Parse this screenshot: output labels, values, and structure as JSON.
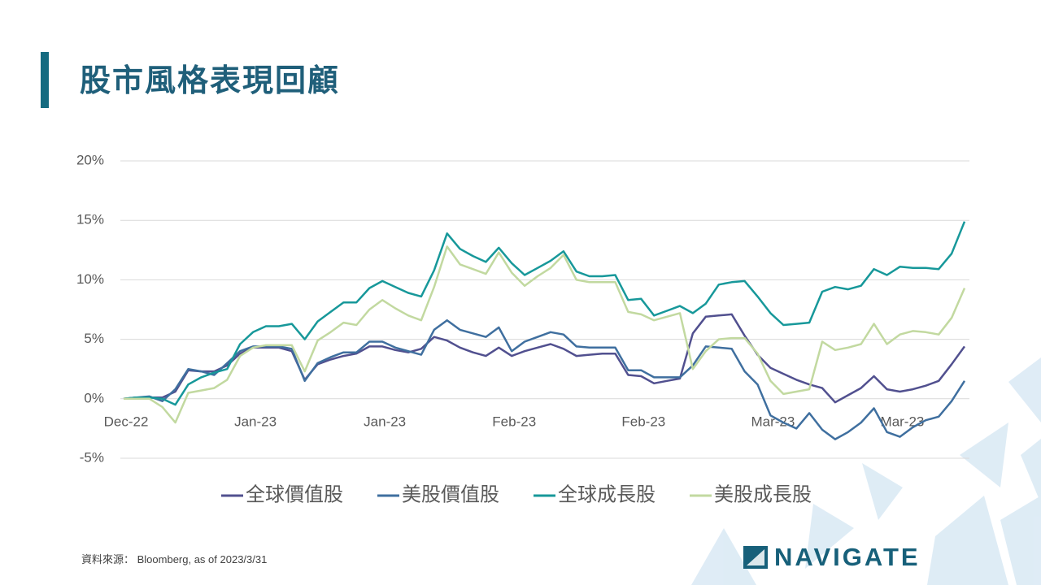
{
  "header": {
    "title": "股市風格表現回顧"
  },
  "footer": {
    "source": "資料來源： Bloomberg, as of 2023/3/31",
    "logo": "NAVIGATE"
  },
  "chart_data": {
    "type": "line",
    "categories": [
      "Dec-22",
      null,
      null,
      null,
      null,
      null,
      null,
      null,
      null,
      null,
      "Jan-23",
      null,
      null,
      null,
      null,
      null,
      null,
      null,
      null,
      null,
      "Jan-23",
      null,
      null,
      null,
      null,
      null,
      null,
      null,
      null,
      null,
      "Feb-23",
      null,
      null,
      null,
      null,
      null,
      null,
      null,
      null,
      null,
      "Feb-23",
      null,
      null,
      null,
      null,
      null,
      null,
      null,
      null,
      null,
      "Mar-23",
      null,
      null,
      null,
      null,
      null,
      null,
      null,
      null,
      null,
      "Mar-23",
      null,
      null,
      null,
      null,
      null
    ],
    "series": [
      {
        "name": "全球價值股",
        "color": "#51508f",
        "values": [
          0,
          0.1,
          0.1,
          0.1,
          0.6,
          2.4,
          2.3,
          2.3,
          2.8,
          3.8,
          4.3,
          4.3,
          4.3,
          4.0,
          1.6,
          2.9,
          3.3,
          3.6,
          3.8,
          4.4,
          4.4,
          4.1,
          3.9,
          4.2,
          5.2,
          4.9,
          4.3,
          3.9,
          3.6,
          4.3,
          3.6,
          4.0,
          4.3,
          4.6,
          4.2,
          3.6,
          3.7,
          3.8,
          3.8,
          2.0,
          1.9,
          1.3,
          1.5,
          1.7,
          5.5,
          6.9,
          7.0,
          7.1,
          5.3,
          3.7,
          2.6,
          2.1,
          1.6,
          1.2,
          0.9,
          -0.3,
          0.3,
          0.9,
          1.9,
          0.8,
          0.6,
          0.8,
          1.1,
          1.5,
          2.9,
          4.4
        ]
      },
      {
        "name": "美股價值股",
        "color": "#3f6f9f",
        "values": [
          0,
          0.1,
          0.2,
          -0.2,
          0.8,
          2.5,
          2.3,
          2.0,
          3.0,
          4.0,
          4.4,
          4.4,
          4.4,
          4.2,
          1.5,
          3.0,
          3.5,
          3.9,
          3.9,
          4.8,
          4.8,
          4.3,
          4.0,
          3.7,
          5.8,
          6.6,
          5.8,
          5.5,
          5.2,
          6.0,
          4.0,
          4.8,
          5.2,
          5.6,
          5.4,
          4.4,
          4.3,
          4.3,
          4.3,
          2.4,
          2.4,
          1.8,
          1.8,
          1.8,
          2.8,
          4.4,
          4.3,
          4.2,
          2.3,
          1.2,
          -1.4,
          -2.0,
          -2.5,
          -1.2,
          -2.6,
          -3.4,
          -2.8,
          -2.0,
          -0.8,
          -2.8,
          -3.2,
          -2.4,
          -1.8,
          -1.5,
          -0.2,
          1.5
        ]
      },
      {
        "name": "全球成長股",
        "color": "#17989a",
        "values": [
          0,
          0.1,
          0.1,
          0.0,
          -0.5,
          1.2,
          1.8,
          2.2,
          2.5,
          4.6,
          5.6,
          6.1,
          6.1,
          6.3,
          5.0,
          6.5,
          7.3,
          8.1,
          8.1,
          9.3,
          9.9,
          9.4,
          8.9,
          8.6,
          10.8,
          13.9,
          12.6,
          12.0,
          11.5,
          12.7,
          11.4,
          10.4,
          11.0,
          11.6,
          12.4,
          10.7,
          10.3,
          10.3,
          10.4,
          8.3,
          8.4,
          7.0,
          7.4,
          7.8,
          7.2,
          8.0,
          9.6,
          9.8,
          9.9,
          8.6,
          7.2,
          6.2,
          6.3,
          6.4,
          9.0,
          9.4,
          9.2,
          9.5,
          10.9,
          10.4,
          11.1,
          11.0,
          11.0,
          10.9,
          12.2,
          14.9
        ]
      },
      {
        "name": "美股成長股",
        "color": "#c2d9a0",
        "values": [
          0,
          0,
          0,
          -0.7,
          -2.0,
          0.5,
          0.7,
          0.9,
          1.6,
          3.6,
          4.3,
          4.5,
          4.5,
          4.5,
          2.3,
          4.9,
          5.6,
          6.4,
          6.2,
          7.5,
          8.3,
          7.6,
          7.0,
          6.6,
          9.4,
          12.8,
          11.3,
          10.9,
          10.5,
          12.3,
          10.6,
          9.5,
          10.3,
          11.0,
          12.1,
          10.0,
          9.8,
          9.8,
          9.8,
          7.3,
          7.1,
          6.6,
          6.9,
          7.2,
          2.5,
          4.0,
          5.0,
          5.1,
          5.1,
          3.8,
          1.5,
          0.4,
          0.6,
          0.8,
          4.8,
          4.1,
          4.3,
          4.6,
          6.3,
          4.6,
          5.4,
          5.7,
          5.6,
          5.4,
          6.8,
          9.3
        ]
      }
    ],
    "ylim": [
      -5,
      20
    ],
    "yticks": [
      {
        "value": -5,
        "label": "-5%"
      },
      {
        "value": 0,
        "label": "0%"
      },
      {
        "value": 5,
        "label": "5%"
      },
      {
        "value": 10,
        "label": "10%"
      },
      {
        "value": 15,
        "label": "15%"
      },
      {
        "value": 20,
        "label": "20%"
      }
    ],
    "grid": true,
    "legend": "bottom"
  }
}
